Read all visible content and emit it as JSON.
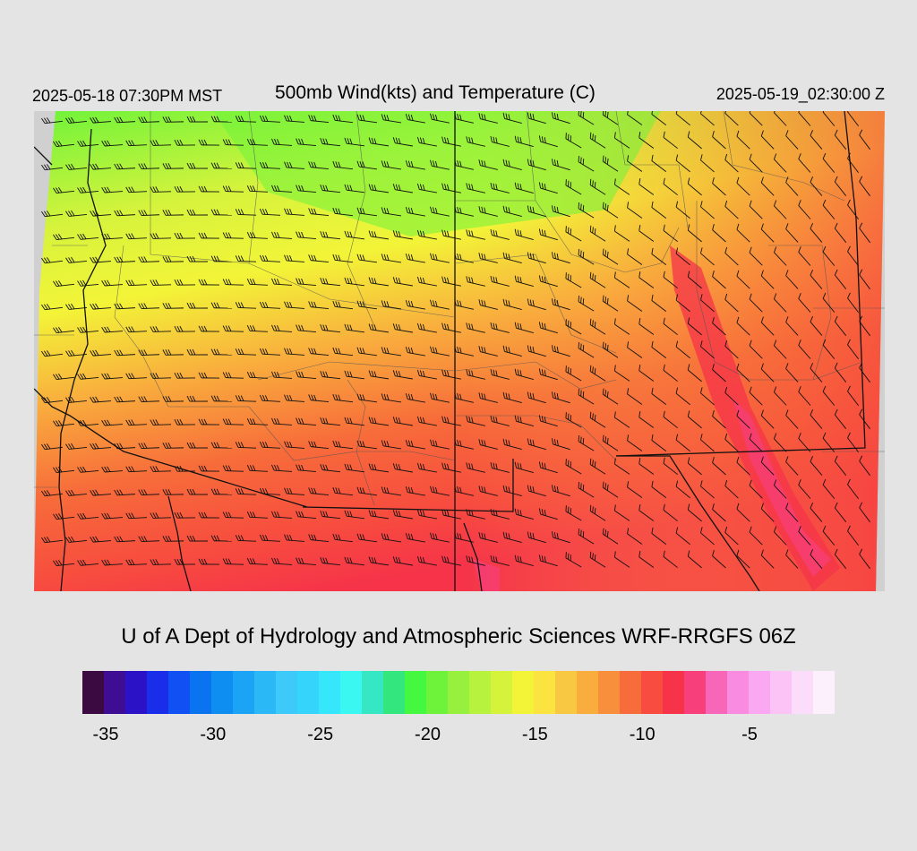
{
  "header": {
    "local_time": "2025-05-18 07:30PM MST",
    "title": "500mb Wind(kts) and Temperature (C)",
    "valid_time": "2025-05-19_02:30:00 Z"
  },
  "credit": "U of A Dept of Hydrology and Atmospheric Sciences WRF-RRGFS 06Z",
  "colorbar": {
    "colors": [
      "#3a0a40",
      "#3f0d94",
      "#2b12c6",
      "#1a2de8",
      "#1150f2",
      "#0a73f0",
      "#0f8ef2",
      "#1ba4f5",
      "#2ab8f7",
      "#3ec9fb",
      "#34d4fb",
      "#36e6fb",
      "#3bf7f2",
      "#35e8c3",
      "#33e67d",
      "#44f83f",
      "#6ef33a",
      "#97f03d",
      "#b6f23e",
      "#d6f33c",
      "#f3f438",
      "#fbe340",
      "#f9c843",
      "#f9ad3d",
      "#f88f3c",
      "#f76c3a",
      "#f74c3f",
      "#f63349",
      "#f73f7c",
      "#f866b8",
      "#f98ce1",
      "#f9a8f1",
      "#fbc3f6",
      "#fbdcfa",
      "#fcf0fc"
    ],
    "labels": [
      "-35",
      "-30",
      "-25",
      "-20",
      "-15",
      "-10",
      "-5"
    ]
  }
}
